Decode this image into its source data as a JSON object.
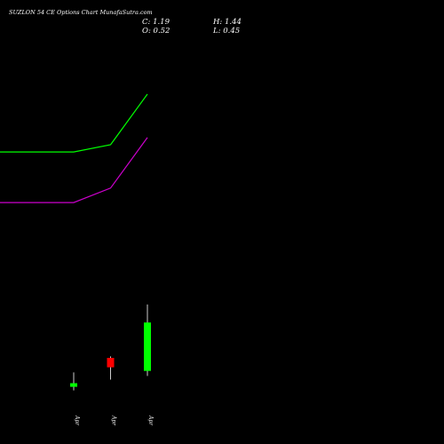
{
  "header": {
    "title": "SUZLON 54 CE Options Chart MunafaSutra.com",
    "close_label": "C: 1.19",
    "high_label": "H: 1.44",
    "open_label": "O: 0.52",
    "low_label": "L: 0.45"
  },
  "colors": {
    "background": "#000000",
    "up": "#00ff00",
    "down": "#ff0000",
    "line1": "#00ff00",
    "line2": "#cc00cc",
    "text": "#ffffff",
    "wick": "#ffffff"
  },
  "chart_data": {
    "type": "candlestick",
    "title": "SUZLON 54 CE Options Chart MunafaSutra.com",
    "categories": [
      "Apr",
      "Apr",
      "Apr"
    ],
    "candles": [
      {
        "label": "Apr",
        "open": 0.3,
        "high": 0.5,
        "low": 0.25,
        "close": 0.35
      },
      {
        "label": "Apr",
        "open": 0.7,
        "high": 0.72,
        "low": 0.4,
        "close": 0.57
      },
      {
        "label": "Apr",
        "open": 0.52,
        "high": 1.44,
        "low": 0.45,
        "close": 1.19
      }
    ],
    "lines": [
      {
        "color": "#00ff00",
        "x": [
          -1,
          0,
          1,
          2
        ],
        "values": [
          3.55,
          3.55,
          3.65,
          4.35
        ]
      },
      {
        "color": "#cc00cc",
        "x": [
          -1,
          0,
          1,
          2
        ],
        "values": [
          2.85,
          2.85,
          3.05,
          3.75
        ]
      }
    ],
    "ylim": [
      0.0,
      5.1
    ],
    "grid": false
  }
}
